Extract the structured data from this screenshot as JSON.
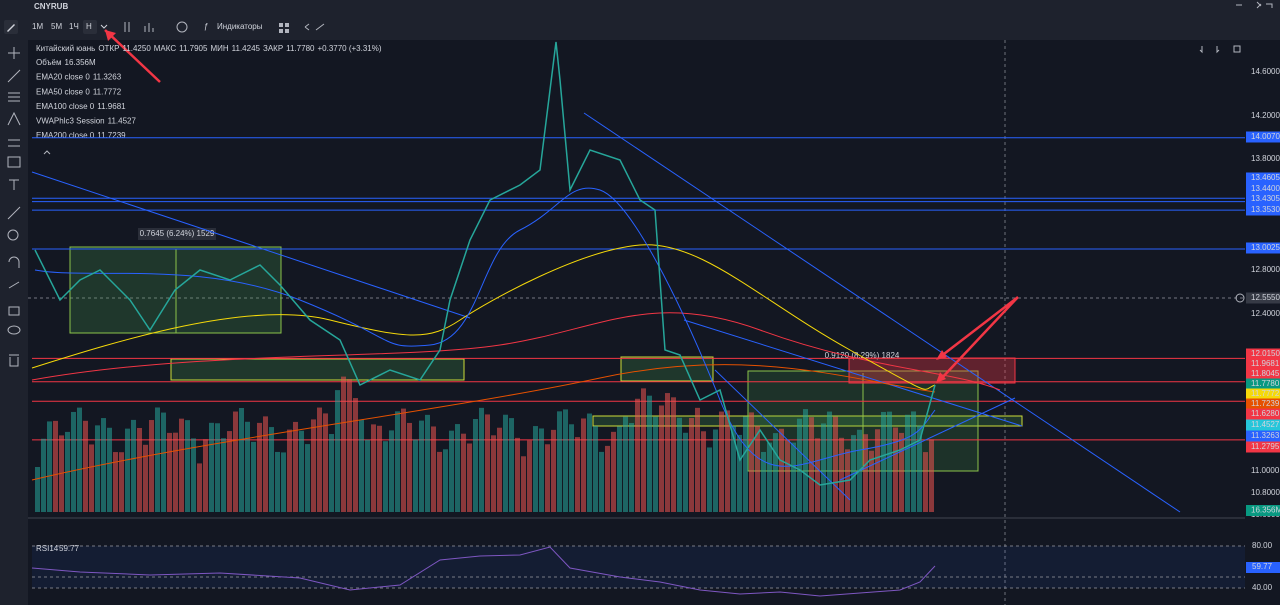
{
  "toolbar": {
    "symbol": "CNYRUB",
    "intervals": [
      "1M",
      "5M",
      "1Ч",
      "Н"
    ],
    "indicators": "Индикаторы"
  },
  "legend": {
    "name": "Китайский юань",
    "open_label": "ОТКР",
    "open": "11.4250",
    "high_label": "МАКС",
    "high": "11.7905",
    "low_label": "МИН",
    "low": "11.4245",
    "close_label": "ЗАКР",
    "close": "11.7780",
    "change": "+0.3770 (+3.31%)",
    "indicators": [
      {
        "name": "Объём",
        "value": "16.356M",
        "color": "#26a69a"
      },
      {
        "name": "EMA20 close 0",
        "value": "11.3263",
        "color": "#2962ff"
      },
      {
        "name": "EMA50 close 0",
        "value": "11.7772",
        "color": "#f5d90a"
      },
      {
        "name": "EMA100 close 0",
        "value": "11.9681",
        "color": "#f23645"
      },
      {
        "name": "VWAPhlc3 Session",
        "value": "11.4527",
        "color": "#26c6da"
      },
      {
        "name": "EMA200 close 0",
        "value": "11.7239",
        "color": "#e65100"
      }
    ]
  },
  "measures": [
    "0.7645 (6.24%) 1529",
    "0.9120 (8.29%) 1824"
  ],
  "price_axis": [
    {
      "value": 14.6,
      "label": "14.6000"
    },
    {
      "value": 14.2,
      "label": "14.2000"
    },
    {
      "value": 14.007,
      "label": "14.0070",
      "bg": "#2962ff",
      "line": "#2962ff"
    },
    {
      "value": 13.8,
      "label": "13.8000"
    },
    {
      "value": 13.4605,
      "label": "13.4605",
      "bg": "#2962ff",
      "line": "#2962ff"
    },
    {
      "value": 13.44,
      "label": "13.4400",
      "bg": "#2962ff"
    },
    {
      "value": 13.4305,
      "label": "13.4305",
      "bg": "#2962ff",
      "line": "#2962ff"
    },
    {
      "value": 13.353,
      "label": "13.3530",
      "bg": "#2962ff",
      "line": "#2962ff"
    },
    {
      "value": 13.0025,
      "label": "13.0025",
      "bg": "#2962ff",
      "line": "#2962ff"
    },
    {
      "value": 12.8,
      "label": "12.8000"
    },
    {
      "value": 12.555,
      "label": "12.5550",
      "bg": "#363a45"
    },
    {
      "value": 12.4,
      "label": "12.4000"
    },
    {
      "value": 12.015,
      "label": "12.0150",
      "bg": "#f23645",
      "line": "#f23645"
    },
    {
      "value": 11.9681,
      "label": "11.9681",
      "bg": "#f23645"
    },
    {
      "value": 11.8045,
      "label": "11.8045",
      "bg": "#f23645",
      "line": "#f23645"
    },
    {
      "value": 11.778,
      "label": "11.7780",
      "bg": "#089981"
    },
    {
      "value": 11.7772,
      "label": "11.7772",
      "bg": "#f5d90a"
    },
    {
      "value": 11.7239,
      "label": "11.7239",
      "bg": "#e65100"
    },
    {
      "value": 11.628,
      "label": "11.6280",
      "bg": "#f23645",
      "line": "#f23645"
    },
    {
      "value": 11.4527,
      "label": "11.4527",
      "bg": "#26c6da"
    },
    {
      "value": 11.3263,
      "label": "11.3263",
      "bg": "#2962ff"
    },
    {
      "value": 11.2795,
      "label": "11.2795",
      "bg": "#f23645",
      "line": "#f23645"
    },
    {
      "value": 11.0,
      "label": "11.0000"
    },
    {
      "value": 10.8,
      "label": "10.8000"
    },
    {
      "value": 10.6,
      "label": "10.6000"
    }
  ],
  "volume_label": "16.356M",
  "rsi": {
    "name": "RSI14",
    "value": "59.77",
    "axis": [
      "80.00",
      "59.77",
      "40.00"
    ]
  }
}
